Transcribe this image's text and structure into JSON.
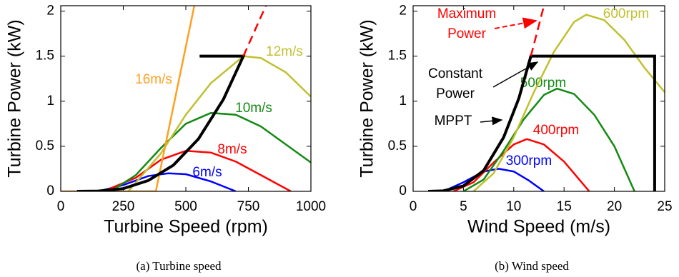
{
  "chart_data": [
    {
      "type": "line",
      "caption": "(a)  Turbine speed",
      "x_label": "Turbine Speed (rpm)",
      "y_label": "Turbine Power (kW)",
      "xlim": [
        0,
        1000
      ],
      "xticks": [
        0,
        250,
        500,
        750,
        1000
      ],
      "ylim": [
        0,
        2.06
      ],
      "yticks": [
        0,
        0.5,
        1,
        1.5,
        2
      ],
      "series": [
        {
          "name": "6m/s",
          "color": "#0000ff",
          "x": [
            150,
            250,
            350,
            430,
            500,
            600,
            700
          ],
          "values": [
            0,
            0.07,
            0.17,
            0.2,
            0.19,
            0.11,
            0
          ]
        },
        {
          "name": "8m/s",
          "color": "#ff0000",
          "x": [
            170,
            300,
            400,
            500,
            600,
            700,
            800,
            920
          ],
          "values": [
            0,
            0.15,
            0.35,
            0.45,
            0.43,
            0.33,
            0.18,
            0
          ]
        },
        {
          "name": "10m/s",
          "color": "#138a13",
          "x": [
            200,
            300,
            400,
            500,
            600,
            700,
            800,
            900,
            1000
          ],
          "values": [
            0,
            0.18,
            0.48,
            0.75,
            0.87,
            0.85,
            0.72,
            0.52,
            0.32
          ]
        },
        {
          "name": "12m/s",
          "color": "#c0c030",
          "x": [
            270,
            400,
            500,
            600,
            730,
            800,
            900,
            1000
          ],
          "values": [
            0,
            0.42,
            0.85,
            1.2,
            1.5,
            1.48,
            1.32,
            1.05
          ]
        },
        {
          "name": "16m/s",
          "color": "#ffa020",
          "x": [
            0,
            380,
            534
          ],
          "values": [
            0,
            0,
            2.06
          ]
        },
        {
          "color": "#000000",
          "x": [
            65,
            150,
            250,
            350,
            450,
            550,
            650,
            730,
            555
          ],
          "values": [
            0,
            0.003,
            0.03,
            0.12,
            0.29,
            0.58,
            1.02,
            1.5,
            1.5
          ]
        },
        {
          "color": "#ff0000",
          "style": "dashed",
          "x": [
            730,
            820
          ],
          "values": [
            1.5,
            2.06
          ]
        }
      ]
    },
    {
      "type": "line",
      "caption": "(b)  Wind speed",
      "x_label": "Wind Speed (m/s)",
      "y_label": "Turbine Power (kW)",
      "xlim": [
        0,
        25
      ],
      "xticks": [
        0,
        5,
        10,
        15,
        20,
        25
      ],
      "ylim": [
        0,
        2.06
      ],
      "yticks": [
        0,
        0.5,
        1,
        1.5,
        2
      ],
      "series": [
        {
          "name": "300rpm",
          "color": "#0000ff",
          "x": [
            3,
            5,
            7,
            8.5,
            10,
            11.5,
            13
          ],
          "values": [
            0,
            0.1,
            0.22,
            0.25,
            0.22,
            0.12,
            0
          ]
        },
        {
          "name": "400rpm",
          "color": "#ff0000",
          "x": [
            4,
            6,
            8,
            10,
            11.3,
            13,
            15,
            17.5
          ],
          "values": [
            0,
            0.1,
            0.32,
            0.52,
            0.58,
            0.52,
            0.33,
            0
          ]
        },
        {
          "name": "500rpm",
          "color": "#138a13",
          "x": [
            5,
            7,
            9,
            11,
            13,
            14.3,
            16,
            18,
            20,
            22
          ],
          "values": [
            0,
            0.13,
            0.45,
            0.8,
            1.07,
            1.14,
            1.08,
            0.85,
            0.5,
            0
          ]
        },
        {
          "name": "600rpm",
          "color": "#c0c030",
          "x": [
            6,
            8,
            10,
            12,
            14,
            16,
            17.2,
            19,
            21,
            23,
            25
          ],
          "values": [
            0,
            0.2,
            0.6,
            1.1,
            1.55,
            1.88,
            1.96,
            1.9,
            1.68,
            1.37,
            1.1
          ]
        },
        {
          "color": "#000000",
          "x": [
            1.5,
            3,
            5,
            7,
            9,
            10.5,
            11.7,
            24,
            24
          ],
          "values": [
            0,
            0.005,
            0.06,
            0.23,
            0.6,
            1.03,
            1.5,
            1.5,
            0
          ]
        },
        {
          "color": "#ff0000",
          "style": "dashed",
          "x": [
            11.7,
            13
          ],
          "values": [
            1.5,
            2.06
          ]
        }
      ],
      "annotations": [
        "Maximum",
        "Power",
        "Constant",
        "Power",
        "MPPT"
      ]
    }
  ]
}
